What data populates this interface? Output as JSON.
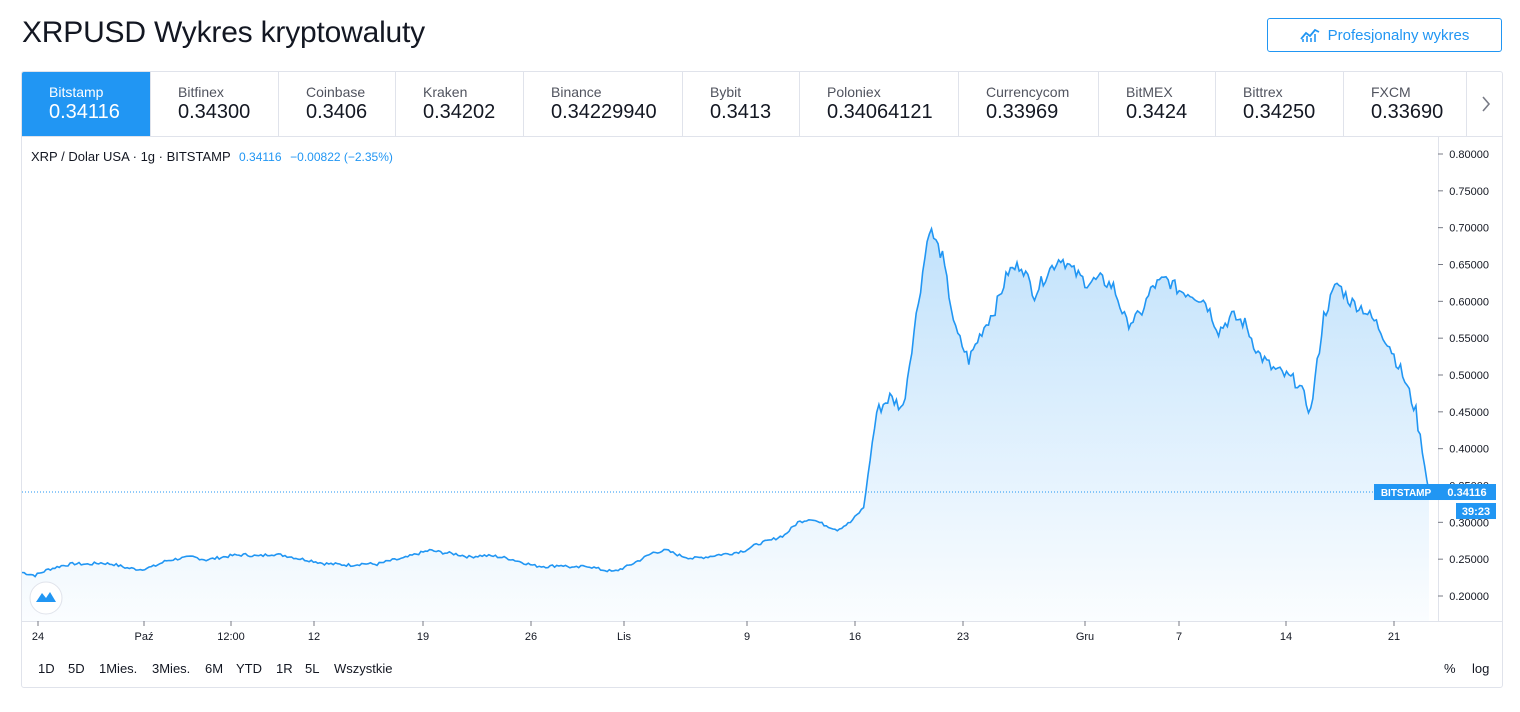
{
  "header": {
    "title": "XRPUSD Wykres kryptowaluty",
    "pro_button_label": "Profesjonalny wykres"
  },
  "exchanges": [
    {
      "name": "Bitstamp",
      "price": "0.34116",
      "active": true
    },
    {
      "name": "Bitfinex",
      "price": "0.34300"
    },
    {
      "name": "Coinbase",
      "price": "0.3406"
    },
    {
      "name": "Kraken",
      "price": "0.34202"
    },
    {
      "name": "Binance",
      "price": "0.34229940"
    },
    {
      "name": "Bybit",
      "price": "0.3413"
    },
    {
      "name": "Poloniex",
      "price": "0.34064121"
    },
    {
      "name": "Currencycom",
      "price": "0.33969"
    },
    {
      "name": "BitMEX",
      "price": "0.3424"
    },
    {
      "name": "Bittrex",
      "price": "0.34250"
    },
    {
      "name": "FXCM",
      "price": "0.33690"
    }
  ],
  "legend": {
    "symbol": "XRP / Dolar USA · 1g · BITSTAMP",
    "last": "0.34116",
    "change": "−0.00822 (−2.35%)"
  },
  "price_tag": {
    "label": "BITSTAMP",
    "value": "0.34116",
    "countdown": "39:23"
  },
  "range_buttons": [
    "1D",
    "5D",
    "1Mies.",
    "3Mies.",
    "6M",
    "YTD",
    "1R",
    "5L",
    "Wszystkie"
  ],
  "options": {
    "percent": "%",
    "log": "log"
  },
  "colors": {
    "accent": "#2196f3",
    "line": "#2196f3"
  },
  "chart_data": {
    "type": "area",
    "series": [
      {
        "values": [
          0.232,
          0.228,
          0.236,
          0.241,
          0.244,
          0.243,
          0.245,
          0.243,
          0.238,
          0.236,
          0.24,
          0.248,
          0.251,
          0.253,
          0.249,
          0.252,
          0.255,
          0.256,
          0.254,
          0.257,
          0.255,
          0.251,
          0.248,
          0.244,
          0.243,
          0.242,
          0.244,
          0.243,
          0.248,
          0.251,
          0.257,
          0.262,
          0.259,
          0.257,
          0.253,
          0.255,
          0.254,
          0.251,
          0.246,
          0.241,
          0.24,
          0.242,
          0.238,
          0.241,
          0.236,
          0.233,
          0.24,
          0.249,
          0.259,
          0.262,
          0.255,
          0.251,
          0.253,
          0.256,
          0.258,
          0.262,
          0.271,
          0.276,
          0.283,
          0.3,
          0.305,
          0.297,
          0.29,
          0.3,
          0.32,
          0.45,
          0.47,
          0.455,
          0.58,
          0.7,
          0.66,
          0.56,
          0.52,
          0.56,
          0.59,
          0.64,
          0.65,
          0.61,
          0.64,
          0.66,
          0.64,
          0.625,
          0.63,
          0.62,
          0.57,
          0.58,
          0.62,
          0.63,
          0.615,
          0.61,
          0.6,
          0.56,
          0.58,
          0.57,
          0.53,
          0.51,
          0.5,
          0.49,
          0.45,
          0.58,
          0.625,
          0.6,
          0.59,
          0.57,
          0.54,
          0.5,
          0.45,
          0.341
        ]
      }
    ],
    "y_ticks": [
      "0.80000",
      "0.75000",
      "0.70000",
      "0.65000",
      "0.60000",
      "0.55000",
      "0.50000",
      "0.45000",
      "0.40000",
      "0.35000",
      "0.30000",
      "0.25000",
      "0.20000"
    ],
    "x_ticks": [
      "24",
      "Paź",
      "12:00",
      "12",
      "19",
      "26",
      "Lis",
      "9",
      "16",
      "23",
      "Gru",
      "7",
      "14",
      "21"
    ],
    "ylim": [
      0.175,
      0.81
    ],
    "grid": false
  }
}
